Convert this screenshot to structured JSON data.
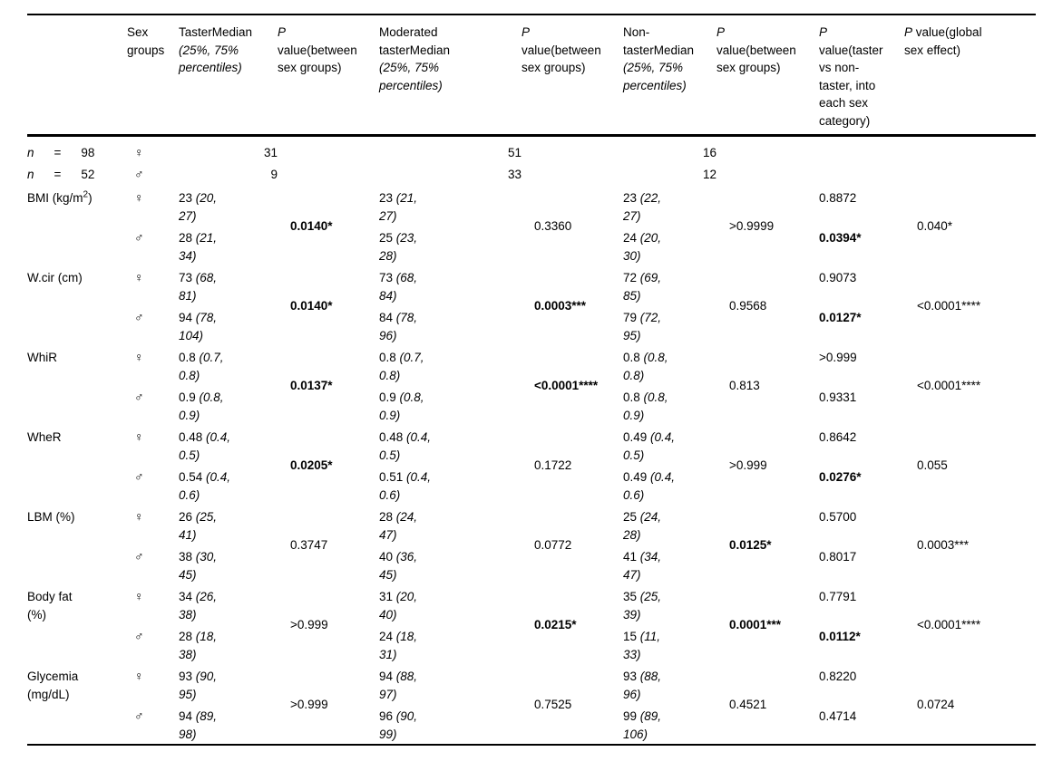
{
  "sex_symbols": {
    "female": "♀",
    "male": "♂"
  },
  "table": {
    "columns": [
      {
        "name": "variable",
        "segments": []
      },
      {
        "name": "sex-groups",
        "segments": [
          {
            "t": "Sex groups"
          }
        ]
      },
      {
        "name": "taster-median",
        "segments": [
          {
            "t": "TasterMedian "
          },
          {
            "t": "(25%, 75% percentiles)",
            "i": true
          }
        ]
      },
      {
        "name": "p-between-sex-taster",
        "segments": [
          {
            "t": "P",
            "i": true
          },
          {
            "t": " value(between sex groups)"
          }
        ]
      },
      {
        "name": "moderated-taster-median",
        "segments": [
          {
            "t": "Moderated tasterMedian "
          },
          {
            "t": "(25%, 75% percentiles)",
            "i": true
          }
        ]
      },
      {
        "name": "p-between-sex-moderated",
        "segments": [
          {
            "t": "P",
            "i": true
          },
          {
            "t": " value(between sex groups)"
          }
        ]
      },
      {
        "name": "non-taster-median",
        "segments": [
          {
            "t": "Non-tasterMedian "
          },
          {
            "t": "(25%, 75% percentiles)",
            "i": true
          }
        ]
      },
      {
        "name": "p-between-sex-nontaster",
        "segments": [
          {
            "t": "P",
            "i": true
          },
          {
            "t": " value(between sex groups)"
          }
        ]
      },
      {
        "name": "p-taster-vs-nontaster",
        "segments": [
          {
            "t": "P",
            "i": true
          },
          {
            "t": " value(taster vs non-taster, into each sex category)"
          }
        ]
      },
      {
        "name": "p-global-sex",
        "segments": [
          {
            "t": "P",
            "i": true
          },
          {
            "t": " value(global sex effect)"
          }
        ]
      }
    ],
    "count_rows": [
      {
        "name": "n-98",
        "label": {
          "var": "n",
          "eq": "=",
          "value": "98"
        },
        "sex": "♀",
        "taster_n": "31",
        "moderated_n": "51",
        "nontaster_n": "16"
      },
      {
        "name": "n-52",
        "label": {
          "var": "n",
          "eq": "=",
          "value": "52"
        },
        "sex": "♂",
        "taster_n": "9",
        "moderated_n": "33",
        "nontaster_n": "12"
      }
    ],
    "variable_rows": [
      {
        "name": "bmi",
        "label": [
          {
            "t": "BMI (kg/m"
          },
          {
            "t": "2",
            "sup": true
          },
          {
            "t": ")"
          }
        ],
        "female": {
          "sex": "♀",
          "taster": {
            "v": "23",
            "pct": "20, 27"
          },
          "moderated": {
            "v": "23",
            "pct": "21, 27"
          },
          "nontaster": {
            "v": "23",
            "pct": "22, 27"
          },
          "p_taster_vs_nontaster": {
            "v": "0.8872",
            "bold": false
          }
        },
        "male": {
          "sex": "♂",
          "taster": {
            "v": "28",
            "pct": "21, 34"
          },
          "moderated": {
            "v": "25",
            "pct": "23, 28"
          },
          "nontaster": {
            "v": "24",
            "pct": "20, 30"
          },
          "p_taster_vs_nontaster": {
            "v": "0.0394*",
            "bold": true
          }
        },
        "p_between_sex_taster": {
          "v": "0.0140*",
          "bold": true
        },
        "p_between_sex_moderated": {
          "v": "0.3360",
          "bold": false
        },
        "p_between_sex_nontaster": {
          "v": ">0.9999",
          "bold": false
        },
        "p_global_sex": {
          "v": "0.040*",
          "bold": false
        }
      },
      {
        "name": "wcir",
        "label": [
          {
            "t": "W.cir (cm)"
          }
        ],
        "female": {
          "sex": "♀",
          "taster": {
            "v": "73",
            "pct": "68, 81"
          },
          "moderated": {
            "v": "73",
            "pct": "68, 84"
          },
          "nontaster": {
            "v": "72",
            "pct": "69, 85"
          },
          "p_taster_vs_nontaster": {
            "v": "0.9073",
            "bold": false
          }
        },
        "male": {
          "sex": "♂",
          "taster": {
            "v": "94",
            "pct": "78, 104"
          },
          "moderated": {
            "v": "84",
            "pct": "78, 96"
          },
          "nontaster": {
            "v": "79",
            "pct": "72, 95"
          },
          "p_taster_vs_nontaster": {
            "v": "0.0127*",
            "bold": true
          }
        },
        "p_between_sex_taster": {
          "v": "0.0140*",
          "bold": true
        },
        "p_between_sex_moderated": {
          "v": "0.0003***",
          "bold": true
        },
        "p_between_sex_nontaster": {
          "v": "0.9568",
          "bold": false
        },
        "p_global_sex": {
          "v": "<0.0001****",
          "bold": false
        }
      },
      {
        "name": "whir",
        "label": [
          {
            "t": "WhiR"
          }
        ],
        "female": {
          "sex": "♀",
          "taster": {
            "v": "0.8",
            "pct": "0.7, 0.8"
          },
          "moderated": {
            "v": "0.8",
            "pct": "0.7, 0.8"
          },
          "nontaster": {
            "v": "0.8",
            "pct": "0.8, 0.8"
          },
          "p_taster_vs_nontaster": {
            "v": ">0.999",
            "bold": false
          }
        },
        "male": {
          "sex": "♂",
          "taster": {
            "v": "0.9",
            "pct": "0.8, 0.9"
          },
          "moderated": {
            "v": "0.9",
            "pct": "0.8, 0.9"
          },
          "nontaster": {
            "v": "0.8",
            "pct": "0.8, 0.9"
          },
          "p_taster_vs_nontaster": {
            "v": "0.9331",
            "bold": false
          }
        },
        "p_between_sex_taster": {
          "v": "0.0137*",
          "bold": true
        },
        "p_between_sex_moderated": {
          "v": "<0.0001****",
          "bold": true
        },
        "p_between_sex_nontaster": {
          "v": "0.813",
          "bold": false
        },
        "p_global_sex": {
          "v": "<0.0001****",
          "bold": false
        }
      },
      {
        "name": "wher",
        "label": [
          {
            "t": "WheR"
          }
        ],
        "female": {
          "sex": "♀",
          "taster": {
            "v": "0.48",
            "pct": "0.4, 0.5"
          },
          "moderated": {
            "v": "0.48",
            "pct": "0.4, 0.5"
          },
          "nontaster": {
            "v": "0.49",
            "pct": "0.4, 0.5"
          },
          "p_taster_vs_nontaster": {
            "v": "0.8642",
            "bold": false
          }
        },
        "male": {
          "sex": "♂",
          "taster": {
            "v": "0.54",
            "pct": "0.4, 0.6"
          },
          "moderated": {
            "v": "0.51",
            "pct": "0.4, 0.6"
          },
          "nontaster": {
            "v": "0.49",
            "pct": "0.4, 0.6"
          },
          "p_taster_vs_nontaster": {
            "v": "0.0276*",
            "bold": true
          }
        },
        "p_between_sex_taster": {
          "v": "0.0205*",
          "bold": true
        },
        "p_between_sex_moderated": {
          "v": "0.1722",
          "bold": false
        },
        "p_between_sex_nontaster": {
          "v": ">0.999",
          "bold": false
        },
        "p_global_sex": {
          "v": "0.055",
          "bold": false
        }
      },
      {
        "name": "lbm",
        "label": [
          {
            "t": "LBM (%)"
          }
        ],
        "female": {
          "sex": "♀",
          "taster": {
            "v": "26",
            "pct": "25, 41"
          },
          "moderated": {
            "v": "28",
            "pct": "24, 47"
          },
          "nontaster": {
            "v": "25",
            "pct": "24, 28"
          },
          "p_taster_vs_nontaster": {
            "v": "0.5700",
            "bold": false
          }
        },
        "male": {
          "sex": "♂",
          "taster": {
            "v": "38",
            "pct": "30, 45"
          },
          "moderated": {
            "v": "40",
            "pct": "36, 45"
          },
          "nontaster": {
            "v": "41",
            "pct": "34, 47"
          },
          "p_taster_vs_nontaster": {
            "v": "0.8017",
            "bold": false
          }
        },
        "p_between_sex_taster": {
          "v": "0.3747",
          "bold": false
        },
        "p_between_sex_moderated": {
          "v": "0.0772",
          "bold": false
        },
        "p_between_sex_nontaster": {
          "v": "0.0125*",
          "bold": true
        },
        "p_global_sex": {
          "v": "0.0003***",
          "bold": false
        }
      },
      {
        "name": "body-fat",
        "label": [
          {
            "t": "Body fat (%)"
          }
        ],
        "female": {
          "sex": "♀",
          "taster": {
            "v": "34",
            "pct": "26, 38"
          },
          "moderated": {
            "v": "31",
            "pct": "20, 40"
          },
          "nontaster": {
            "v": "35",
            "pct": "25, 39"
          },
          "p_taster_vs_nontaster": {
            "v": "0.7791",
            "bold": false
          }
        },
        "male": {
          "sex": "♂",
          "taster": {
            "v": "28",
            "pct": "18, 38"
          },
          "moderated": {
            "v": "24",
            "pct": "18, 31"
          },
          "nontaster": {
            "v": "15",
            "pct": "11, 33"
          },
          "p_taster_vs_nontaster": {
            "v": "0.0112*",
            "bold": true
          }
        },
        "p_between_sex_taster": {
          "v": ">0.999",
          "bold": false
        },
        "p_between_sex_moderated": {
          "v": "0.0215*",
          "bold": true
        },
        "p_between_sex_nontaster": {
          "v": "0.0001***",
          "bold": true
        },
        "p_global_sex": {
          "v": "<0.0001****",
          "bold": false
        }
      },
      {
        "name": "glycemia",
        "label": [
          {
            "t": "Glycemia (mg/dL)"
          }
        ],
        "female": {
          "sex": "♀",
          "taster": {
            "v": "93",
            "pct": "90, 95"
          },
          "moderated": {
            "v": "94",
            "pct": "88, 97"
          },
          "nontaster": {
            "v": "93",
            "pct": "88, 96"
          },
          "p_taster_vs_nontaster": {
            "v": "0.8220",
            "bold": false
          }
        },
        "male": {
          "sex": "♂",
          "taster": {
            "v": "94",
            "pct": "89, 98"
          },
          "moderated": {
            "v": "96",
            "pct": "90, 99"
          },
          "nontaster": {
            "v": "99",
            "pct": "89, 106"
          },
          "p_taster_vs_nontaster": {
            "v": "0.4714",
            "bold": false
          }
        },
        "p_between_sex_taster": {
          "v": ">0.999",
          "bold": false
        },
        "p_between_sex_moderated": {
          "v": "0.7525",
          "bold": false
        },
        "p_between_sex_nontaster": {
          "v": "0.4521",
          "bold": false
        },
        "p_global_sex": {
          "v": "0.0724",
          "bold": false
        }
      }
    ]
  }
}
